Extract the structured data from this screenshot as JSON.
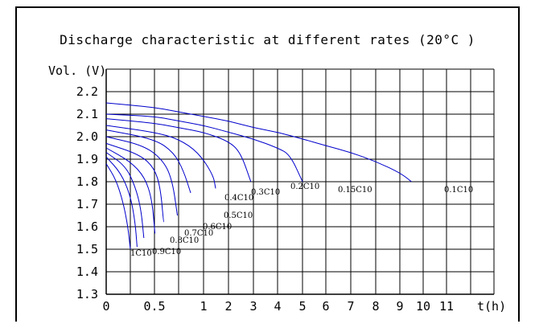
{
  "chart_data": {
    "type": "line",
    "title": "Discharge characteristic at different rates (20°C )",
    "ylabel": "Vol. (V)",
    "xlabel": "t(h)",
    "ylim": [
      1.3,
      2.3
    ],
    "y_ticks": [
      "1.3",
      "1.4",
      "1.5",
      "1.6",
      "1.7",
      "1.8",
      "1.9",
      "2.0",
      "2.1",
      "2.2"
    ],
    "x_ticks": [
      "0",
      "0.5",
      "1",
      "2",
      "3",
      "4",
      "5",
      "6",
      "7",
      "8",
      "9",
      "10",
      "11"
    ],
    "grid": true,
    "line_color": "#0000cc",
    "series": [
      {
        "name": "0.1C10",
        "points": [
          [
            0,
            2.15
          ],
          [
            1,
            2.13
          ],
          [
            2,
            2.11
          ],
          [
            3,
            2.09
          ],
          [
            4,
            2.07
          ],
          [
            5,
            2.04
          ],
          [
            6,
            2.02
          ],
          [
            7,
            1.99
          ],
          [
            8,
            1.96
          ],
          [
            9,
            1.93
          ],
          [
            10,
            1.89
          ],
          [
            11,
            1.84
          ],
          [
            11.5,
            1.8
          ]
        ]
      },
      {
        "name": "0.15C10",
        "points": [
          [
            0,
            2.1
          ],
          [
            1,
            2.09
          ],
          [
            2,
            2.07
          ],
          [
            3,
            2.05
          ],
          [
            4,
            2.02
          ],
          [
            5,
            1.99
          ],
          [
            6,
            1.95
          ],
          [
            6.5,
            1.92
          ],
          [
            7,
            1.8
          ]
        ]
      },
      {
        "name": "0.2C10",
        "points": [
          [
            0,
            2.08
          ],
          [
            1,
            2.06
          ],
          [
            2,
            2.04
          ],
          [
            3,
            2.02
          ],
          [
            4,
            1.98
          ],
          [
            4.5,
            1.93
          ],
          [
            4.9,
            1.8
          ]
        ]
      },
      {
        "name": "0.3C10",
        "points": [
          [
            0,
            2.05
          ],
          [
            1,
            2.02
          ],
          [
            2,
            1.99
          ],
          [
            2.8,
            1.93
          ],
          [
            3.4,
            1.83
          ],
          [
            3.5,
            1.77
          ]
        ]
      },
      {
        "name": "0.4C10",
        "points": [
          [
            0,
            2.03
          ],
          [
            1,
            1.99
          ],
          [
            1.8,
            1.93
          ],
          [
            2.2,
            1.85
          ],
          [
            2.5,
            1.75
          ]
        ]
      },
      {
        "name": "0.5C10",
        "points": [
          [
            0,
            2.0
          ],
          [
            0.8,
            1.96
          ],
          [
            1.4,
            1.89
          ],
          [
            1.75,
            1.8
          ],
          [
            1.95,
            1.65
          ]
        ]
      },
      {
        "name": "0.6C10",
        "points": [
          [
            0,
            1.97
          ],
          [
            0.7,
            1.92
          ],
          [
            1.0,
            1.86
          ],
          [
            1.25,
            1.77
          ],
          [
            1.38,
            1.62
          ]
        ]
      },
      {
        "name": "0.7C10",
        "points": [
          [
            0,
            1.95
          ],
          [
            0.5,
            1.89
          ],
          [
            0.8,
            1.82
          ],
          [
            0.95,
            1.72
          ],
          [
            1.02,
            1.57
          ]
        ]
      },
      {
        "name": "0.8C10",
        "points": [
          [
            0,
            1.93
          ],
          [
            0.4,
            1.87
          ],
          [
            0.6,
            1.78
          ],
          [
            0.72,
            1.68
          ],
          [
            0.78,
            1.55
          ]
        ]
      },
      {
        "name": "0.9C10",
        "points": [
          [
            0,
            1.91
          ],
          [
            0.3,
            1.84
          ],
          [
            0.5,
            1.74
          ],
          [
            0.6,
            1.62
          ],
          [
            0.64,
            1.51
          ]
        ]
      },
      {
        "name": "1C10",
        "points": [
          [
            0,
            1.88
          ],
          [
            0.2,
            1.81
          ],
          [
            0.35,
            1.71
          ],
          [
            0.45,
            1.6
          ],
          [
            0.5,
            1.5
          ]
        ]
      }
    ],
    "curve_labels": [
      "0.1C10",
      "0.15C10",
      "0.2C10",
      "0.3C10",
      "0.4C10",
      "0.5C10",
      "0.6C10",
      "0.7C10",
      "0.8C10",
      "0.9C10",
      "1C10"
    ]
  }
}
